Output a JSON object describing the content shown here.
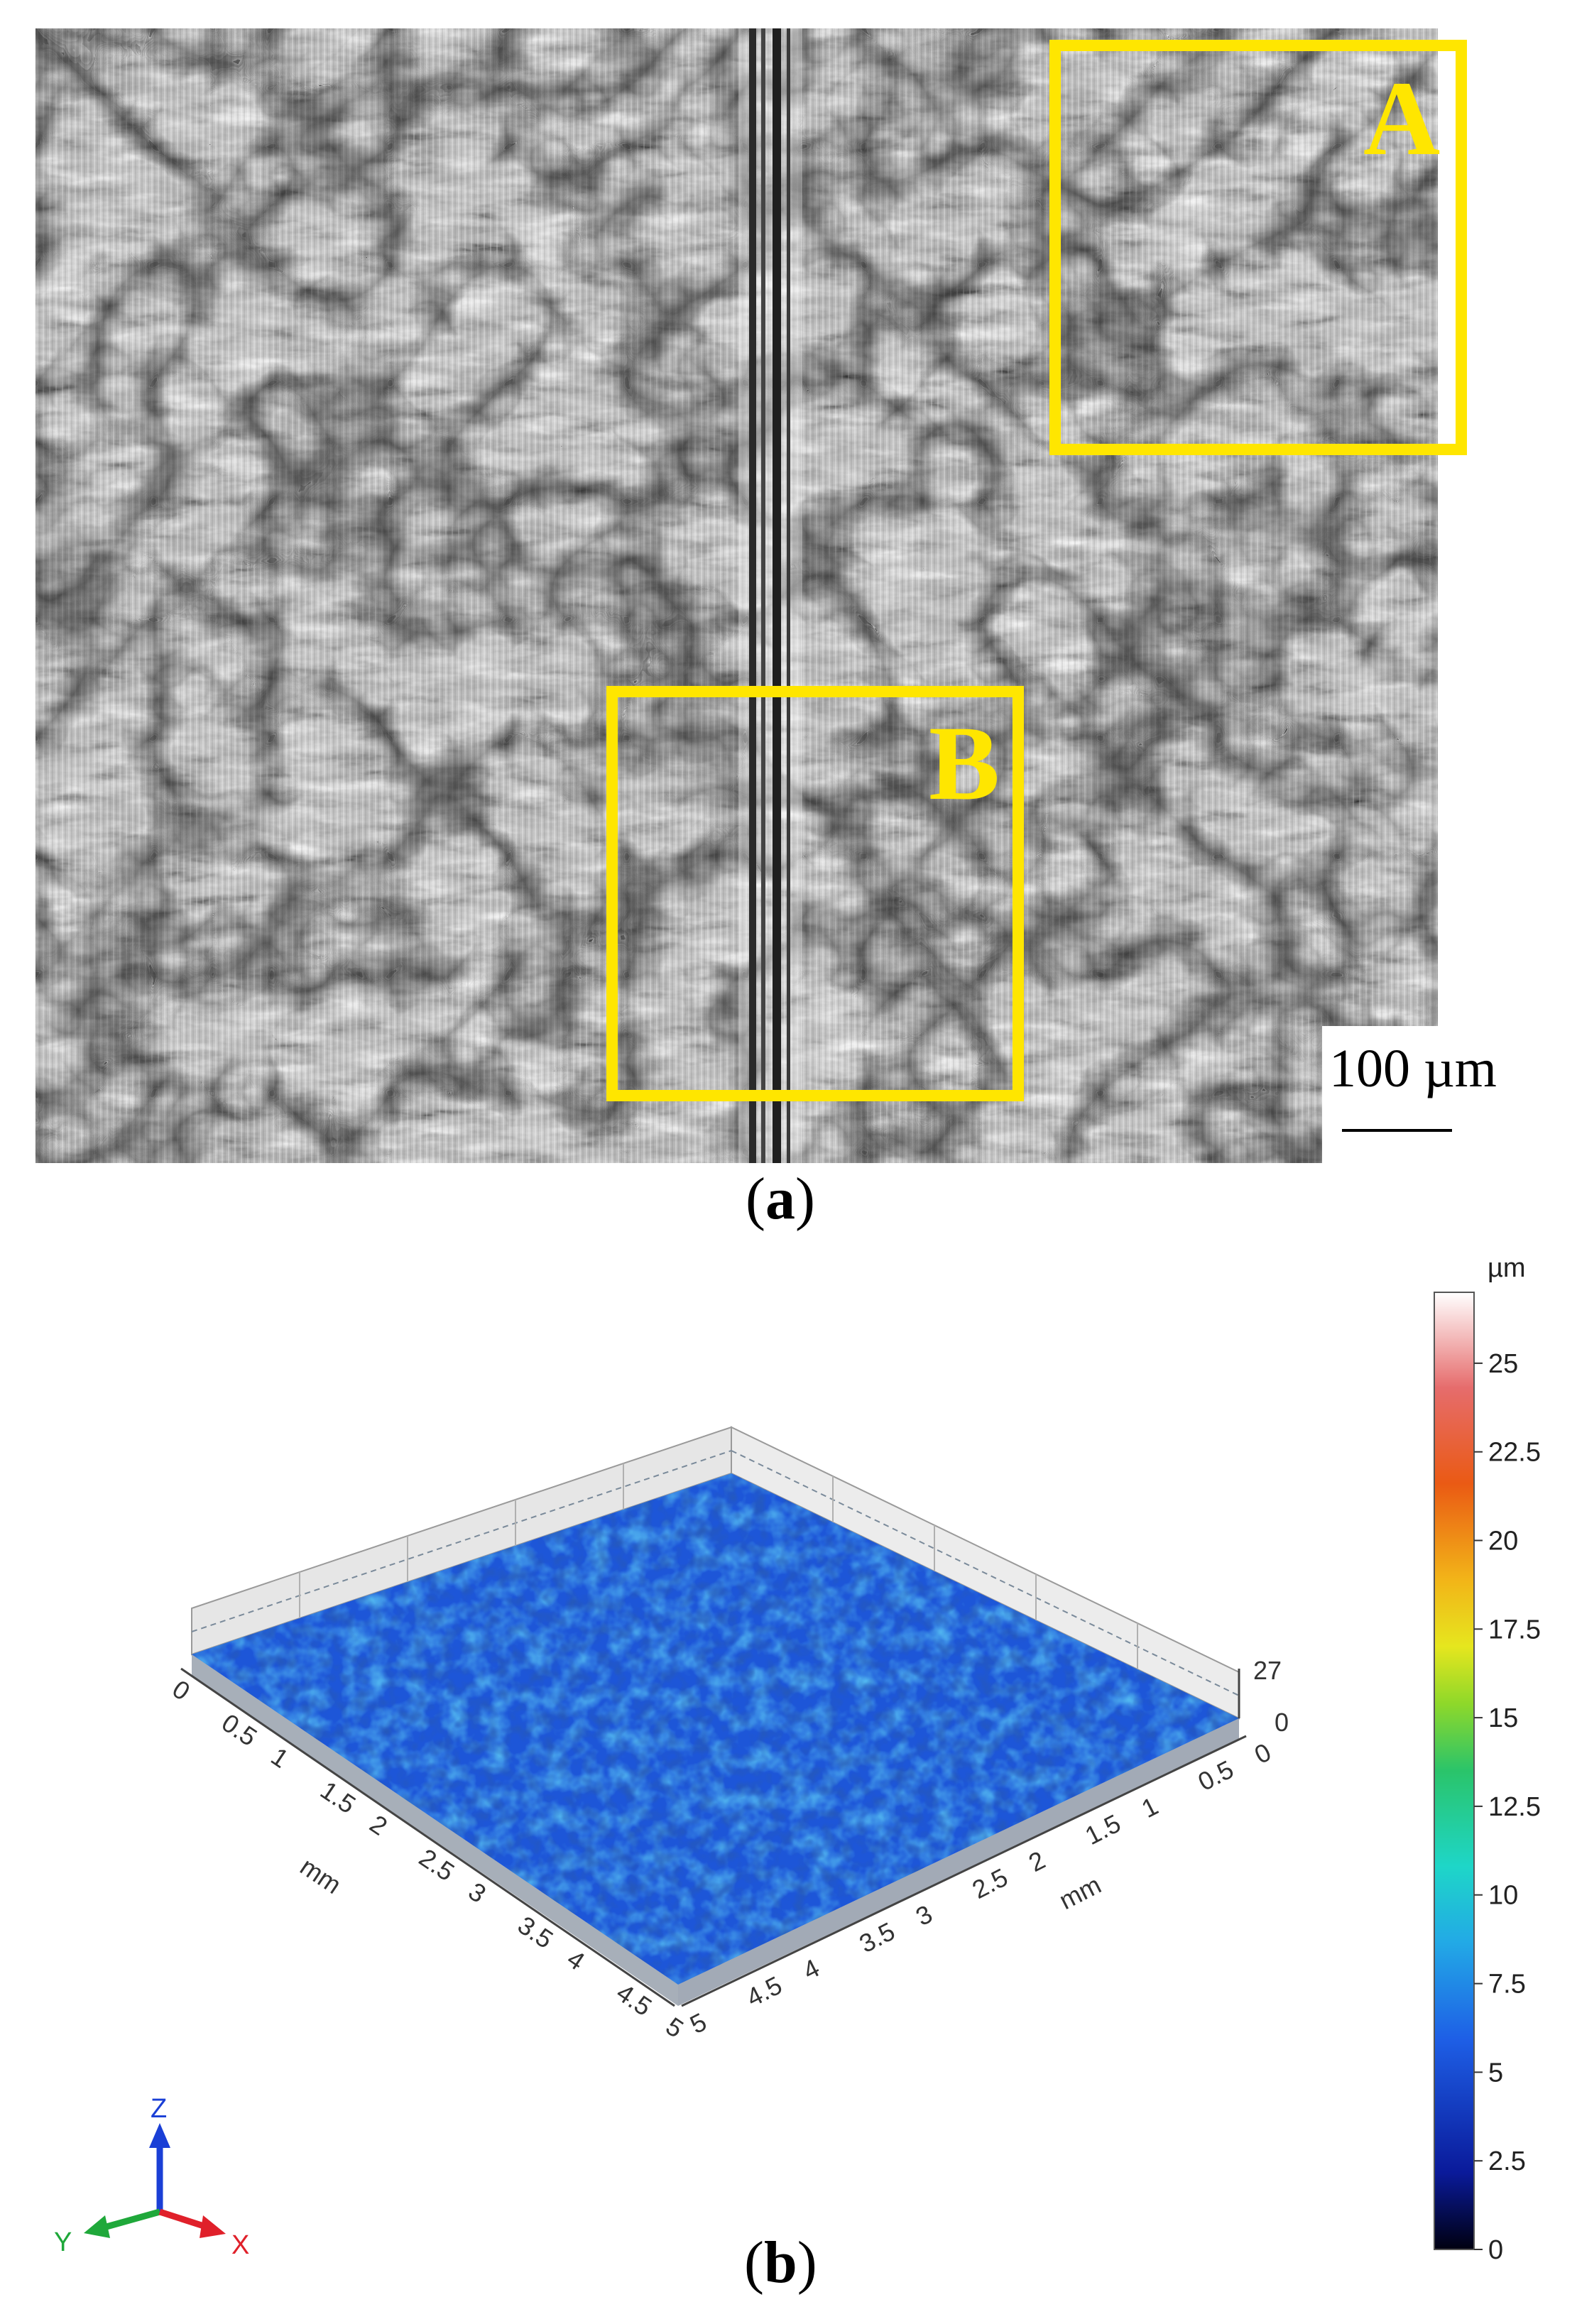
{
  "panel_a": {
    "roi_a_label": "A",
    "roi_b_label": "B",
    "scale_bar": "100 µm",
    "roi_color": "#ffe600",
    "caption_open": "(",
    "caption_letter": "a",
    "caption_close": ")"
  },
  "panel_b": {
    "caption_open": "(",
    "caption_letter": "b",
    "caption_close": ")",
    "colorbar_unit": "µm",
    "colorbar_ticks": [
      "25",
      "22.5",
      "20",
      "17.5",
      "15",
      "12.5",
      "10",
      "7.5",
      "5",
      "2.5",
      "0"
    ],
    "z_max_label": "27",
    "z_min_label": "0",
    "x_axis_ticks": [
      "0",
      "0.5",
      "1",
      "1.5",
      "2",
      "2.5",
      "3",
      "3.5",
      "4",
      "4.5",
      "5"
    ],
    "y_axis_ticks": [
      "0",
      "0.5",
      "1",
      "1.5",
      "2",
      "2.5",
      "3",
      "3.5",
      "4",
      "4.5",
      "5"
    ],
    "x_axis_unit": "mm",
    "y_axis_unit": "mm",
    "triad": {
      "z": "Z",
      "y": "Y",
      "x": "X"
    },
    "triad_colors": {
      "z": "#1a3fd6",
      "y": "#1fa83a",
      "x": "#e0202a"
    },
    "surface_colors": [
      "#0b2fb0",
      "#1a5ee0",
      "#2a8fe8",
      "#36c7e0"
    ]
  }
}
